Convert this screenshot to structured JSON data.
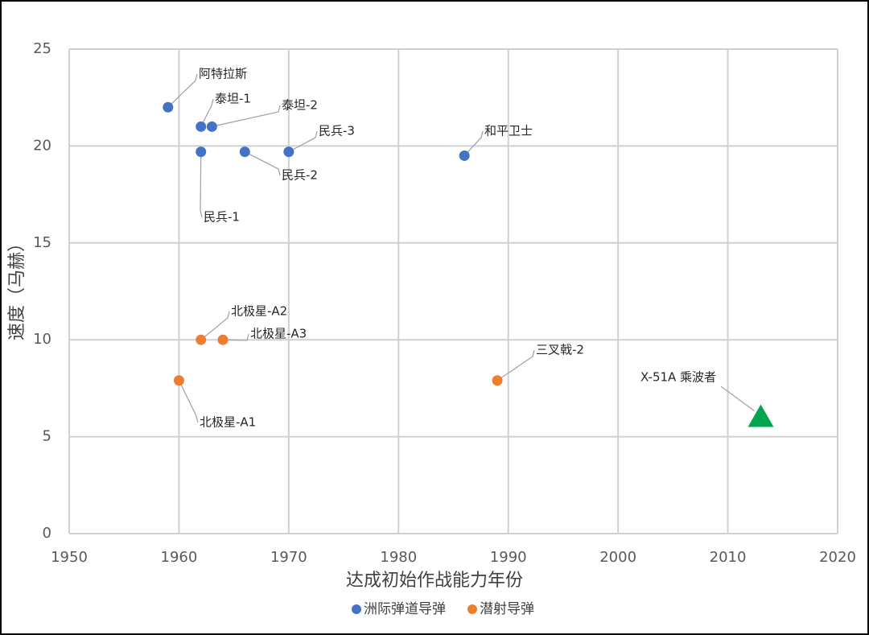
{
  "chart_data": {
    "type": "scatter",
    "x_label": "达成初始作战能力年份",
    "y_label": "速度（马赫）",
    "xlim": [
      1950,
      2020
    ],
    "xticks": [
      1950,
      1960,
      1970,
      1980,
      1990,
      2000,
      2010,
      2020
    ],
    "ylim": [
      0,
      25
    ],
    "yticks": [
      0,
      5,
      10,
      15,
      20,
      25
    ],
    "grid": true,
    "legend": "bottom",
    "series": [
      {
        "name": "洲际弹道导弹",
        "color": "#4472c4",
        "x": [
          1959,
          1962,
          1963,
          1962,
          1966,
          1970,
          1986
        ],
        "values": [
          22,
          21,
          21,
          19.7,
          19.7,
          19.7,
          19.5
        ],
        "labels": [
          "阿特拉斯",
          "泰坦-1",
          "泰坦-2",
          "民兵-1",
          "民兵-2",
          "民兵-3",
          "和平卫士"
        ]
      },
      {
        "name": "潜射导弹",
        "color": "#ed7d31",
        "x": [
          1960,
          1962,
          1964,
          1989
        ],
        "values": [
          7.9,
          10,
          10,
          7.9
        ],
        "labels": [
          "北极星-A1",
          "北极星-A2",
          "北极星-A3",
          "三叉戟-2"
        ]
      }
    ],
    "highlight": {
      "label": "X-51A 乘波者",
      "x": 2013,
      "y": 6,
      "color": "#00a550",
      "marker": "triangle"
    }
  }
}
